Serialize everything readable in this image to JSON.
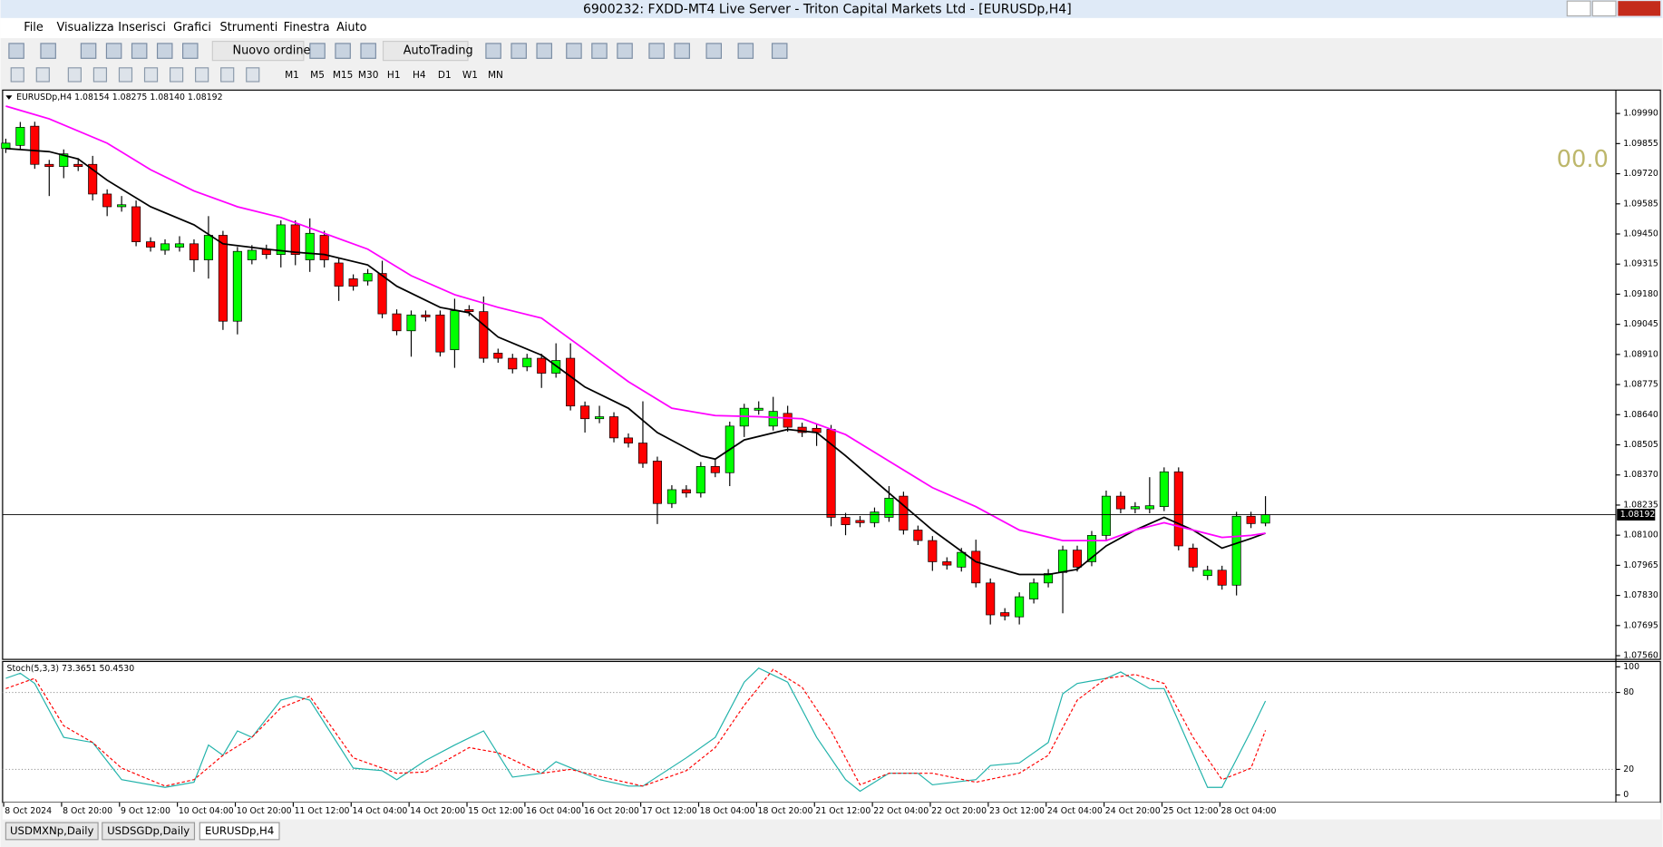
{
  "window": {
    "title": "6900232: FXDD-MT4 Live Server - Triton Capital Markets Ltd - [EURUSDp,H4]"
  },
  "menu": [
    "File",
    "Visualizza",
    "Inserisci",
    "Grafici",
    "Strumenti",
    "Finestra",
    "Aiuto"
  ],
  "toolbar": {
    "new_order": "Nuovo ordine",
    "autotrading": "AutoTrading"
  },
  "timeframes": [
    "M1",
    "M5",
    "M15",
    "M30",
    "H1",
    "H4",
    "D1",
    "W1",
    "MN"
  ],
  "tabs": [
    "USDMXNp,Daily",
    "USDSGDp,Daily",
    "EURUSDp,H4"
  ],
  "chart_data": {
    "type": "candlestick",
    "header": "EURUSDp,H4  1.08154 1.08275 1.08140 1.08192",
    "annotation": "00.0",
    "bull_color": "#00ff00",
    "bear_color": "#ff0000",
    "ohlc": [
      [
        1.09833,
        1.09877,
        1.09813,
        1.09857
      ],
      [
        1.09847,
        1.09952,
        1.09827,
        1.09928
      ],
      [
        1.09933,
        1.09953,
        1.09742,
        1.09762
      ],
      [
        1.09762,
        1.09782,
        1.0962,
        1.09752
      ],
      [
        1.09752,
        1.09829,
        1.097,
        1.09809
      ],
      [
        1.09762,
        1.0979,
        1.09732,
        1.09752
      ],
      [
        1.09762,
        1.098,
        1.096,
        1.09629
      ],
      [
        1.09629,
        1.0965,
        1.0953,
        1.09572
      ],
      [
        1.09572,
        1.0962,
        1.0955,
        1.09581
      ],
      [
        1.09572,
        1.096,
        1.09395,
        1.09415
      ],
      [
        1.09415,
        1.09435,
        1.09371,
        1.09391
      ],
      [
        1.09377,
        1.09426,
        1.09357,
        1.09406
      ],
      [
        1.09391,
        1.0944,
        1.09371,
        1.09406
      ],
      [
        1.09406,
        1.09426,
        1.0928,
        1.09334
      ],
      [
        1.09334,
        1.0953,
        1.0925,
        1.09444
      ],
      [
        1.09444,
        1.09464,
        1.0902,
        1.09059
      ],
      [
        1.09059,
        1.09392,
        1.09,
        1.09372
      ],
      [
        1.09334,
        1.094,
        1.09314,
        1.09377
      ],
      [
        1.09382,
        1.09402,
        1.09338,
        1.09358
      ],
      [
        1.09358,
        1.09511,
        1.093,
        1.09491
      ],
      [
        1.09491,
        1.09511,
        1.0931,
        1.09358
      ],
      [
        1.09334,
        1.0952,
        1.0928,
        1.09453
      ],
      [
        1.09444,
        1.09464,
        1.093,
        1.09334
      ],
      [
        1.0932,
        1.0934,
        1.0915,
        1.09216
      ],
      [
        1.09249,
        1.09269,
        1.09196,
        1.09216
      ],
      [
        1.09239,
        1.09293,
        1.09219,
        1.09273
      ],
      [
        1.09273,
        1.0933,
        1.09072,
        1.09092
      ],
      [
        1.09092,
        1.09112,
        1.08996,
        1.09016
      ],
      [
        1.09016,
        1.09107,
        1.089,
        1.09087
      ],
      [
        1.09087,
        1.09107,
        1.09058,
        1.09078
      ],
      [
        1.09087,
        1.09107,
        1.08901,
        1.08921
      ],
      [
        1.08931,
        1.0916,
        1.0885,
        1.09106
      ],
      [
        1.09111,
        1.09131,
        1.09082,
        1.09102
      ],
      [
        1.09102,
        1.0917,
        1.08873,
        1.08893
      ],
      [
        1.08916,
        1.08936,
        1.08873,
        1.08893
      ],
      [
        1.08893,
        1.08913,
        1.08825,
        1.08845
      ],
      [
        1.08855,
        1.08913,
        1.08835,
        1.08893
      ],
      [
        1.08893,
        1.08913,
        1.0876,
        1.08826
      ],
      [
        1.08826,
        1.0896,
        1.08806,
        1.08883
      ],
      [
        1.08893,
        1.0896,
        1.08659,
        1.08679
      ],
      [
        1.08679,
        1.08699,
        1.0856,
        1.08622
      ],
      [
        1.08622,
        1.0868,
        1.08602,
        1.08631
      ],
      [
        1.08631,
        1.08651,
        1.08516,
        1.08536
      ],
      [
        1.08536,
        1.08556,
        1.08493,
        1.08513
      ],
      [
        1.08513,
        1.087,
        1.08402,
        1.08422
      ],
      [
        1.08432,
        1.08452,
        1.0815,
        1.08242
      ],
      [
        1.08242,
        1.08324,
        1.08222,
        1.08304
      ],
      [
        1.08304,
        1.08324,
        1.08269,
        1.08289
      ],
      [
        1.08289,
        1.08428,
        1.08269,
        1.08408
      ],
      [
        1.08408,
        1.0844,
        1.0836,
        1.0838
      ],
      [
        1.0838,
        1.08609,
        1.0832,
        1.08589
      ],
      [
        1.08589,
        1.08689,
        1.0854,
        1.08669
      ],
      [
        1.0866,
        1.087,
        1.0864,
        1.08669
      ],
      [
        1.08589,
        1.0872,
        1.08569,
        1.08655
      ],
      [
        1.08646,
        1.0868,
        1.08564,
        1.08584
      ],
      [
        1.08584,
        1.08604,
        1.0854,
        1.0856
      ],
      [
        1.08579,
        1.08599,
        1.085,
        1.0856
      ],
      [
        1.08574,
        1.08594,
        1.0814,
        1.0818
      ],
      [
        1.0818,
        1.082,
        1.081,
        1.08147
      ],
      [
        1.08166,
        1.08186,
        1.08136,
        1.08156
      ],
      [
        1.08156,
        1.08224,
        1.08136,
        1.08204
      ],
      [
        1.0818,
        1.0832,
        1.0816,
        1.08266
      ],
      [
        1.08275,
        1.08295,
        1.08103,
        1.08123
      ],
      [
        1.08123,
        1.08143,
        1.08056,
        1.08076
      ],
      [
        1.08076,
        1.08096,
        1.0794,
        1.07981
      ],
      [
        1.07981,
        1.08001,
        1.07946,
        1.07966
      ],
      [
        1.07957,
        1.08043,
        1.07937,
        1.08023
      ],
      [
        1.08028,
        1.0808,
        1.07866,
        1.07886
      ],
      [
        1.07886,
        1.07906,
        1.077,
        1.07743
      ],
      [
        1.07753,
        1.07773,
        1.07718,
        1.07738
      ],
      [
        1.07734,
        1.07844,
        1.077,
        1.07824
      ],
      [
        1.07814,
        1.07906,
        1.07794,
        1.07886
      ],
      [
        1.07886,
        1.07948,
        1.07866,
        1.07928
      ],
      [
        1.07933,
        1.08053,
        1.0775,
        1.08033
      ],
      [
        1.08033,
        1.08053,
        1.07937,
        1.07957
      ],
      [
        1.07981,
        1.08119,
        1.07961,
        1.08099
      ],
      [
        1.08099,
        1.083,
        1.08079,
        1.08275
      ],
      [
        1.08275,
        1.08295,
        1.08198,
        1.08218
      ],
      [
        1.08218,
        1.08248,
        1.08198,
        1.08228
      ],
      [
        1.08218,
        1.0836,
        1.08198,
        1.08232
      ],
      [
        1.08228,
        1.08404,
        1.08208,
        1.08384
      ],
      [
        1.08384,
        1.08404,
        1.08032,
        1.08052
      ],
      [
        1.08042,
        1.08062,
        1.07937,
        1.07957
      ],
      [
        1.07919,
        1.07963,
        1.07899,
        1.07943
      ],
      [
        1.07943,
        1.07963,
        1.07856,
        1.07876
      ],
      [
        1.07876,
        1.08205,
        1.0783,
        1.08185
      ],
      [
        1.08185,
        1.08205,
        1.08132,
        1.08152
      ],
      [
        1.08154,
        1.08275,
        1.0814,
        1.08192
      ]
    ],
    "ylim": [
      1.07553,
      1.1009
    ],
    "yticks": [
      {
        "value": 1.0999,
        "label": "1.09990"
      },
      1.09855,
      {
        "value": 1.0972,
        "label": "1.09720"
      },
      1.09585,
      {
        "value": 1.0945,
        "label": "1.09450"
      },
      1.09315,
      {
        "value": 1.0918,
        "label": "1.09180"
      },
      1.09045,
      {
        "value": 1.0891,
        "label": "1.08910"
      },
      1.08775,
      {
        "value": 1.0864,
        "label": "1.08640"
      },
      1.08505,
      {
        "value": 1.0837,
        "label": "1.08370"
      },
      1.08235,
      {
        "value": 1.081,
        "label": "1.08100"
      },
      1.07965,
      {
        "value": 1.0783,
        "label": "1.07830"
      },
      1.07695,
      {
        "value": 1.0756,
        "label": "1.07560"
      }
    ],
    "bid": 1.08192,
    "overlays": [
      {
        "color": "#000000",
        "x": [
          0,
          3,
          5,
          7,
          10,
          13,
          15,
          18,
          20,
          22,
          25,
          27,
          30,
          32,
          34,
          37,
          40,
          43,
          45,
          48,
          49,
          51,
          54,
          56,
          58,
          61,
          64,
          67,
          70,
          72,
          74,
          76,
          78,
          80,
          82,
          84,
          86,
          87
        ],
        "values": [
          1.09833,
          1.09819,
          1.09786,
          1.09691,
          1.09572,
          1.09491,
          1.09406,
          1.09382,
          1.09368,
          1.09358,
          1.09311,
          1.09216,
          1.09121,
          1.09097,
          1.08988,
          1.08907,
          1.08764,
          1.08669,
          1.0856,
          1.08456,
          1.08441,
          1.08527,
          1.08574,
          1.0856,
          1.08456,
          1.08289,
          1.08123,
          1.07981,
          1.07924,
          1.07924,
          1.07947,
          1.08052,
          1.08123,
          1.0818,
          1.08123,
          1.08042,
          1.08085,
          1.08109
        ]
      },
      {
        "color": "#ff00ff",
        "x": [
          0,
          3,
          7,
          10,
          13,
          16,
          19,
          22,
          25,
          28,
          31,
          34,
          37,
          40,
          43,
          46,
          49,
          52,
          55,
          58,
          61,
          64,
          67,
          70,
          73,
          76,
          78,
          80,
          82,
          84,
          86,
          87
        ],
        "values": [
          1.10023,
          1.09966,
          1.09857,
          1.09738,
          1.09643,
          1.09572,
          1.09524,
          1.09453,
          1.09382,
          1.09263,
          1.09178,
          1.09121,
          1.09073,
          1.08931,
          1.08788,
          1.08669,
          1.08636,
          1.08631,
          1.08622,
          1.08551,
          1.08432,
          1.08313,
          1.08228,
          1.08123,
          1.08076,
          1.08076,
          1.08123,
          1.08156,
          1.08123,
          1.0809,
          1.08099,
          1.08109
        ]
      }
    ],
    "time_labels": [
      "8 Oct 2024",
      "8 Oct 20:00",
      "9 Oct 12:00",
      "10 Oct 04:00",
      "10 Oct 20:00",
      "11 Oct 12:00",
      "14 Oct 04:00",
      "14 Oct 20:00",
      "15 Oct 12:00",
      "16 Oct 04:00",
      "16 Oct 20:00",
      "17 Oct 12:00",
      "18 Oct 04:00",
      "18 Oct 20:00",
      "21 Oct 12:00",
      "22 Oct 04:00",
      "22 Oct 20:00",
      "23 Oct 12:00",
      "24 Oct 04:00",
      "24 Oct 20:00",
      "25 Oct 12:00",
      "28 Oct 04:00"
    ]
  },
  "indicator": {
    "type": "line",
    "label": "Stoch(5,3,3) 73.3651 50.4530",
    "ylim": [
      0,
      100
    ],
    "yticks": [
      0,
      20,
      80,
      100
    ],
    "series": [
      {
        "color": "#20b2aa",
        "x": [
          0,
          1,
          2,
          4,
          6,
          8,
          11,
          13,
          14,
          15,
          16,
          17,
          19,
          20,
          21,
          24,
          26,
          27,
          29,
          31,
          33,
          35,
          37,
          38,
          41,
          43,
          44,
          47,
          49,
          51,
          52,
          54,
          56,
          58,
          59,
          61,
          63,
          64,
          67,
          68,
          70,
          72,
          73,
          74,
          76,
          77,
          79,
          80,
          83,
          84,
          86,
          87
        ],
        "values": [
          91,
          95,
          87,
          45,
          41,
          12,
          6,
          10,
          39,
          31,
          50,
          45,
          74,
          77,
          74,
          21,
          19,
          12,
          27,
          39,
          50,
          14,
          17,
          26,
          12,
          7,
          7,
          29,
          45,
          88,
          99,
          88,
          45,
          12,
          3,
          17,
          17,
          8,
          12,
          23,
          25,
          41,
          79,
          87,
          91,
          96,
          83,
          83,
          6,
          6,
          50,
          73.3651
        ]
      },
      {
        "color": "#ff0000",
        "dashed": true,
        "x": [
          0,
          2,
          4,
          6,
          8,
          11,
          13,
          15,
          17,
          19,
          21,
          24,
          27,
          29,
          32,
          34,
          37,
          39,
          42,
          44,
          47,
          49,
          51,
          53,
          55,
          57,
          59,
          61,
          64,
          67,
          70,
          72,
          74,
          76,
          78,
          80,
          82,
          84,
          86,
          87
        ],
        "values": [
          83,
          91,
          54,
          41,
          21,
          7,
          12,
          31,
          45,
          68,
          77,
          29,
          17,
          18,
          37,
          33,
          17,
          20,
          12,
          7,
          19,
          37,
          70,
          98,
          84,
          50,
          8,
          17,
          17,
          10,
          17,
          31,
          74,
          91,
          94,
          87,
          45,
          12,
          21,
          50.453
        ]
      }
    ]
  }
}
